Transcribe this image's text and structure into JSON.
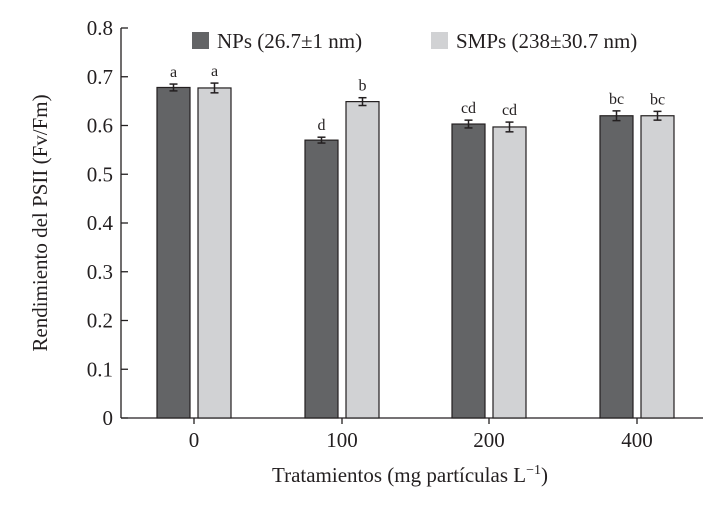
{
  "chart_data": {
    "type": "bar",
    "categories": [
      "0",
      "100",
      "200",
      "400"
    ],
    "series": [
      {
        "name": "NPs (26.7±1 nm)",
        "color": "#636466",
        "values": [
          0.678,
          0.57,
          0.603,
          0.62
        ],
        "errors": [
          0.007,
          0.006,
          0.008,
          0.01
        ],
        "labels": [
          "a",
          "d",
          "cd",
          "bc"
        ]
      },
      {
        "name": "SMPs (238±30.7 nm)",
        "color": "#d1d2d4",
        "values": [
          0.677,
          0.649,
          0.597,
          0.62
        ],
        "errors": [
          0.01,
          0.008,
          0.01,
          0.009
        ],
        "labels": [
          "a",
          "b",
          "cd",
          "bc"
        ]
      }
    ],
    "xlabel": "Tratamientos (mg partículas L",
    "xlabel_superscript": "−1",
    "xlabel_close": ")",
    "ylabel": "Rendimiento del PSII (Fv/Fm)",
    "ylim": [
      0,
      0.8
    ],
    "yticks": [
      "0",
      "0.1",
      "0.2",
      "0.3",
      "0.4",
      "0.5",
      "0.6",
      "0.7",
      "0.8"
    ],
    "grid": false,
    "legend_position": "top"
  }
}
